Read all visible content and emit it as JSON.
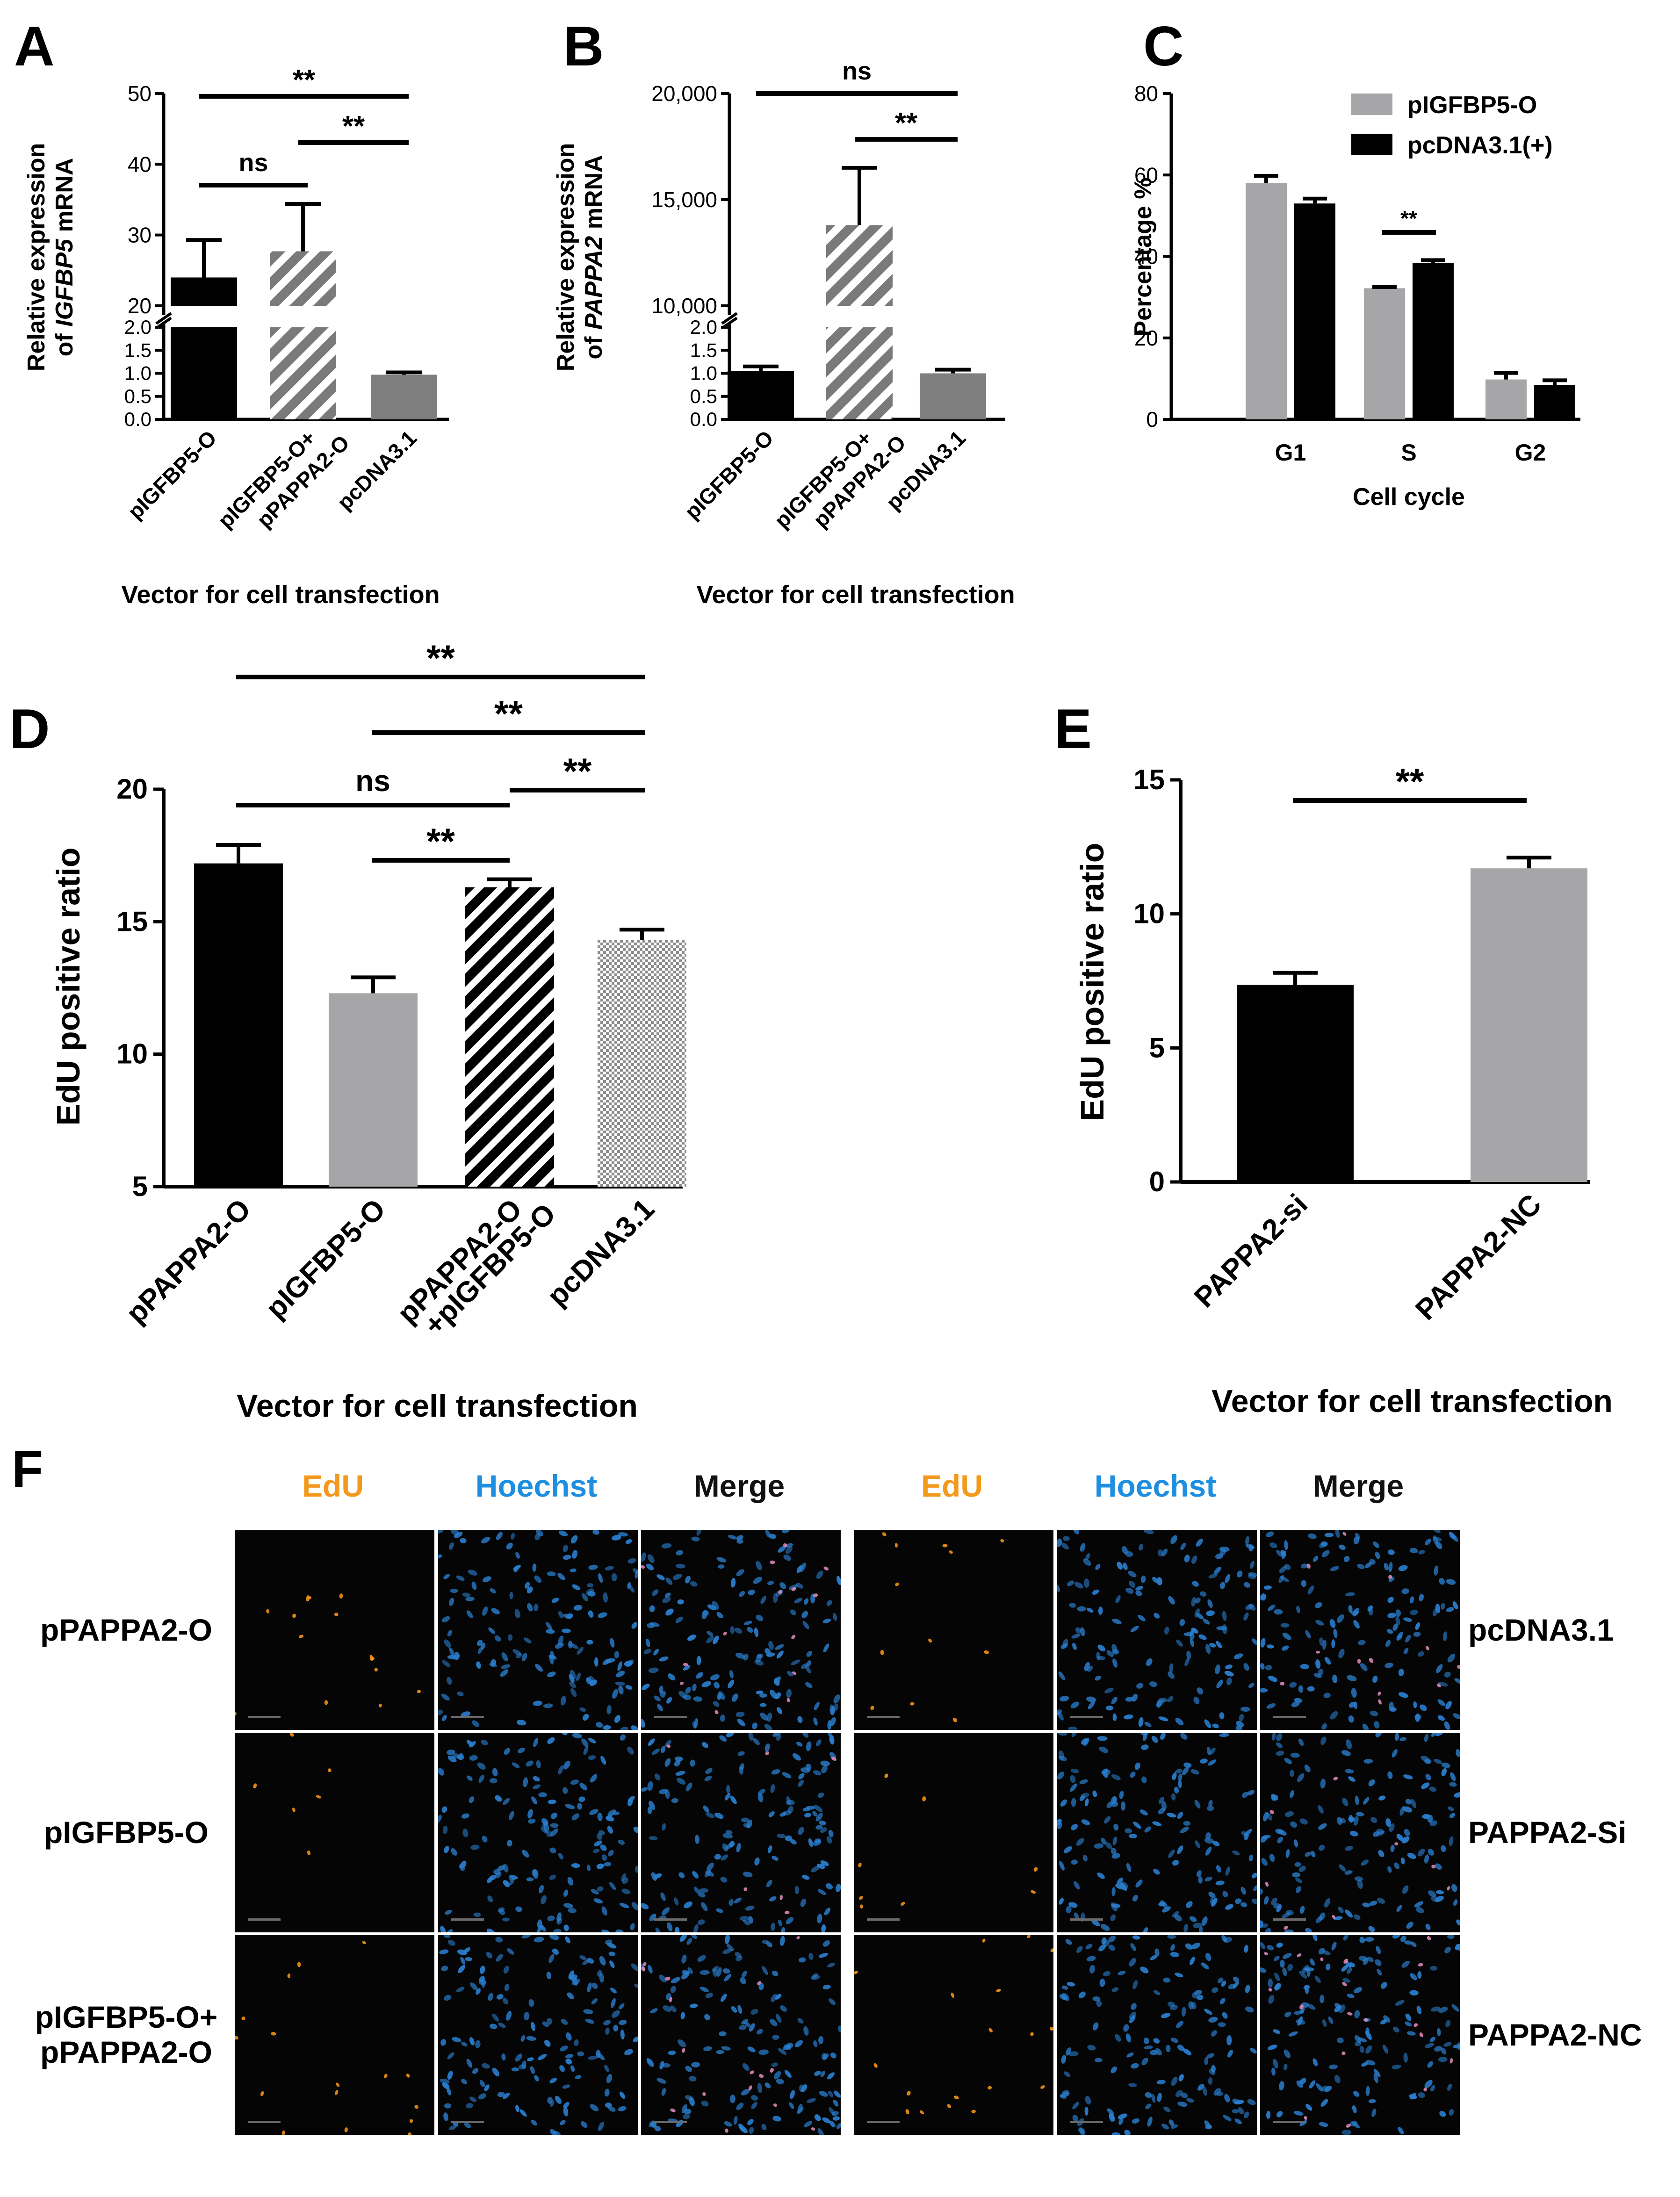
{
  "panels": {
    "A": {
      "letter": "A",
      "ylabel_line1": "Relative expression",
      "ylabel_line2_prefix": "of ",
      "ylabel_gene": "IGFBP5",
      "ylabel_line2_suffix": " mRNA",
      "xlabel": "Vector for cell transfection",
      "categories": [
        "pIGFBP5-O",
        "pIGFBP5-O+ pPAPPA2-O",
        "pcDNA3.1"
      ],
      "category_lines": [
        [
          "pIGFBP5-O"
        ],
        [
          "pIGFBP5-O+",
          "pPAPPA2-O"
        ],
        [
          "pcDNA3.1"
        ]
      ],
      "values": [
        24,
        27.7,
        0.97
      ],
      "errors": [
        5.3,
        6.7,
        0.05
      ],
      "fills": [
        "black",
        "hatch-gray",
        "gray"
      ],
      "upper_ticks": [
        20,
        30,
        40,
        50
      ],
      "lower_ticks": [
        0.0,
        0.5,
        1.0,
        1.5,
        2.0
      ],
      "ylim_upper": [
        20,
        50
      ],
      "ylim_lower": [
        0,
        2
      ],
      "significance": [
        {
          "from": 0,
          "to": 1,
          "label": "ns"
        },
        {
          "from": 0,
          "to": 2,
          "label": "**"
        },
        {
          "from": 1,
          "to": 2,
          "label": "**"
        }
      ]
    },
    "B": {
      "letter": "B",
      "ylabel_line1": "Relative expression",
      "ylabel_line2_prefix": "of ",
      "ylabel_gene": "PAPPA2",
      "ylabel_line2_suffix": " mRNA",
      "xlabel": "Vector for cell transfection",
      "categories": [
        "pIGFBP5-O",
        "pIGFBP5-O+ pPAPPA2-O",
        "pcDNA3.1"
      ],
      "category_lines": [
        [
          "pIGFBP5-O"
        ],
        [
          "pIGFBP5-O+",
          "pPAPPA2-O"
        ],
        [
          "pcDNA3.1"
        ]
      ],
      "values": [
        1.05,
        13800,
        1.0
      ],
      "errors": [
        0.1,
        2700,
        0.08
      ],
      "fills": [
        "black",
        "hatch-gray",
        "gray"
      ],
      "upper_ticks": [
        "10,000",
        "15,000",
        "20,000"
      ],
      "lower_ticks": [
        0.0,
        0.5,
        1.0,
        1.5,
        2.0
      ],
      "ylim_upper": [
        10000,
        20000
      ],
      "ylim_lower": [
        0,
        2
      ],
      "significance": [
        {
          "from": 0,
          "to": 2,
          "label": "ns"
        },
        {
          "from": 1,
          "to": 2,
          "label": "**"
        }
      ]
    },
    "C": {
      "letter": "C",
      "type": "grouped-bar",
      "ylabel": "Percentage %",
      "xlabel": "Cell cycle",
      "categories": [
        "G1",
        "S",
        "G2"
      ],
      "series": [
        {
          "name": "pIGFBP5-O",
          "values": [
            58,
            32.2,
            9.8
          ],
          "errors": [
            1.8,
            0.3,
            1.6
          ],
          "color": "#a6a6a8"
        },
        {
          "name": "pcDNA3.1(+)",
          "values": [
            53,
            38.4,
            8.4
          ],
          "errors": [
            1.2,
            0.7,
            1.2
          ],
          "color": "#000000"
        }
      ],
      "yticks": [
        0,
        20,
        40,
        60,
        80
      ],
      "ylim": [
        0,
        80
      ],
      "significance": [
        {
          "category": 1,
          "label": "**"
        }
      ]
    },
    "D": {
      "letter": "D",
      "ylabel": "EdU positive ratio",
      "xlabel": "Vector for cell transfection",
      "categories": [
        "pPAPPA2-O",
        "pIGFBP5-O",
        "pPAPPA2-O +pIGFBP5-O",
        "pcDNA3.1"
      ],
      "category_lines": [
        [
          "pPAPPA2-O"
        ],
        [
          "pIGFBP5-O"
        ],
        [
          "pPAPPA2-O",
          "+pIGFBP5-O"
        ],
        [
          "pcDNA3.1"
        ]
      ],
      "values": [
        17.2,
        12.3,
        16.3,
        14.3
      ],
      "errors": [
        0.7,
        0.6,
        0.3,
        0.4
      ],
      "fills": [
        "black",
        "gray-light",
        "hatch-black",
        "checker"
      ],
      "yticks": [
        5,
        10,
        15,
        20
      ],
      "ylim": [
        5,
        20
      ],
      "significance": [
        {
          "from": 0,
          "to": 3,
          "label": "**"
        },
        {
          "from": 1,
          "to": 3,
          "label": "**"
        },
        {
          "from": 0,
          "to": 2,
          "label": "ns"
        },
        {
          "from": 2,
          "to": 3,
          "label": "**"
        },
        {
          "from": 1,
          "to": 2,
          "label": "**"
        }
      ]
    },
    "E": {
      "letter": "E",
      "ylabel": "EdU positive ratio",
      "xlabel": "Vector for cell transfection",
      "categories": [
        "PAPPA2-si",
        "PAPPA2-NC"
      ],
      "values": [
        7.35,
        11.7
      ],
      "errors": [
        0.45,
        0.4
      ],
      "fills": [
        "black",
        "gray-light"
      ],
      "yticks": [
        0,
        5,
        10,
        15
      ],
      "ylim": [
        0,
        15
      ],
      "significance": [
        {
          "from": 0,
          "to": 1,
          "label": "**"
        }
      ]
    }
  },
  "chart_data": [
    {
      "panel": "A",
      "type": "bar",
      "title": "",
      "xlabel": "Vector for cell transfection",
      "ylabel": "Relative expression of IGFBP5 mRNA",
      "categories": [
        "pIGFBP5-O",
        "pIGFBP5-O+ pPAPPA2-O",
        "pcDNA3.1"
      ],
      "values": [
        24,
        27.7,
        0.97
      ],
      "errors": [
        5.3,
        6.7,
        0.05
      ],
      "ylim": [
        0,
        50
      ],
      "axis_break": [
        2,
        20
      ]
    },
    {
      "panel": "B",
      "type": "bar",
      "title": "",
      "xlabel": "Vector for cell transfection",
      "ylabel": "Relative expression of PAPPA2 mRNA",
      "categories": [
        "pIGFBP5-O",
        "pIGFBP5-O+ pPAPPA2-O",
        "pcDNA3.1"
      ],
      "values": [
        1.05,
        13800,
        1.0
      ],
      "errors": [
        0.1,
        2700,
        0.08
      ],
      "ylim": [
        0,
        20000
      ],
      "axis_break": [
        2,
        10000
      ]
    },
    {
      "panel": "C",
      "type": "bar",
      "title": "",
      "xlabel": "Cell cycle",
      "ylabel": "Percentage %",
      "categories": [
        "G1",
        "S",
        "G2"
      ],
      "series": [
        {
          "name": "pIGFBP5-O",
          "values": [
            58,
            32.2,
            9.8
          ]
        },
        {
          "name": "pcDNA3.1(+)",
          "values": [
            53,
            38.4,
            8.4
          ]
        }
      ],
      "ylim": [
        0,
        80
      ],
      "legend": "top-right"
    },
    {
      "panel": "D",
      "type": "bar",
      "title": "",
      "xlabel": "Vector for cell transfection",
      "ylabel": "EdU positive ratio",
      "categories": [
        "pPAPPA2-O",
        "pIGFBP5-O",
        "pPAPPA2-O +pIGFBP5-O",
        "pcDNA3.1"
      ],
      "values": [
        17.2,
        12.3,
        16.3,
        14.3
      ],
      "ylim": [
        5,
        20
      ]
    },
    {
      "panel": "E",
      "type": "bar",
      "title": "",
      "xlabel": "Vector for cell transfection",
      "ylabel": "EdU positive ratio",
      "categories": [
        "PAPPA2-si",
        "PAPPA2-NC"
      ],
      "values": [
        7.35,
        11.7
      ],
      "ylim": [
        0,
        15
      ]
    }
  ],
  "panelF": {
    "letter": "F",
    "left_columns": [
      "EdU",
      "Hoechst",
      "Merge"
    ],
    "right_columns": [
      "EdU",
      "Hoechst",
      "Merge"
    ],
    "left_rows": [
      [
        "pPAPPA2-O"
      ],
      [
        "pIGFBP5-O"
      ],
      [
        "pIGFBP5-O+",
        "pPAPPA2-O"
      ]
    ],
    "right_rows": [
      [
        "pcDNA3.1"
      ],
      [
        "PAPPA2-Si"
      ],
      [
        "PAPPA2-NC"
      ]
    ],
    "colors": {
      "edu": "#f39a1e",
      "hoechst": "#1e8fe0",
      "merge": "#111111",
      "nucleus": "#2a7fd0",
      "edu_dot": "#ff9a1a"
    }
  }
}
